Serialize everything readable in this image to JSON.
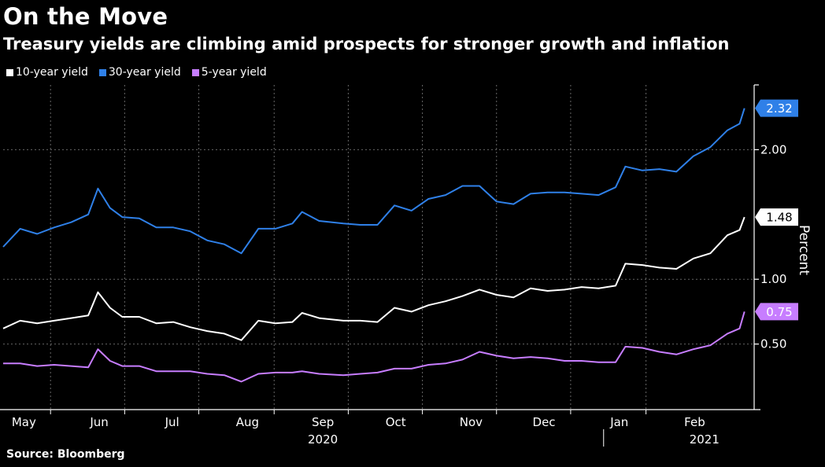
{
  "header": {
    "title": "On the Move",
    "subtitle": "Treasury yields are climbing amid prospects for stronger growth and inflation"
  },
  "source": "Source: Bloomberg",
  "colors": {
    "background": "#000000",
    "ten_year": "#ffffff",
    "thirty_year": "#2f80e8",
    "five_year": "#c77dff",
    "grid": "#666666"
  },
  "chart_data": {
    "type": "line",
    "title": "On the Move",
    "subtitle": "Treasury yields are climbing amid prospects for stronger growth and inflation",
    "ylabel": "Percent",
    "y_axis_side": "right",
    "grid": true,
    "legend_position": "top-left",
    "ylim": [
      0,
      2.5
    ],
    "yticks": [
      0.5,
      1.0,
      2.0
    ],
    "ytick_labels": [
      "0.50",
      "1.00",
      "2.00"
    ],
    "xlim": [
      "2020-04-27",
      "2021-03-02"
    ],
    "month_ticks": [
      "2020-05-01",
      "2020-06-01",
      "2020-07-01",
      "2020-08-01",
      "2020-09-01",
      "2020-10-01",
      "2020-11-01",
      "2020-12-01",
      "2021-01-01",
      "2021-02-01"
    ],
    "month_labels": [
      "May",
      "Jun",
      "Jul",
      "Aug",
      "Sep",
      "Oct",
      "Nov",
      "Dec",
      "Jan",
      "Feb"
    ],
    "year_labels": [
      {
        "label": "2020",
        "at": "2020-09-01"
      },
      {
        "label": "2021",
        "at": "2021-02-05"
      }
    ],
    "year_divider": "2021-01-01",
    "end_labels": [
      "2.32",
      "1.48",
      "0.75"
    ],
    "series": [
      {
        "name": "10-year yield",
        "color": "#ffffff",
        "last": "1.48",
        "points": [
          [
            "2020-04-27",
            0.62
          ],
          [
            "2020-05-04",
            0.68
          ],
          [
            "2020-05-11",
            0.66
          ],
          [
            "2020-05-18",
            0.68
          ],
          [
            "2020-05-25",
            0.7
          ],
          [
            "2020-06-01",
            0.72
          ],
          [
            "2020-06-05",
            0.9
          ],
          [
            "2020-06-10",
            0.78
          ],
          [
            "2020-06-15",
            0.71
          ],
          [
            "2020-06-22",
            0.71
          ],
          [
            "2020-06-29",
            0.66
          ],
          [
            "2020-07-06",
            0.67
          ],
          [
            "2020-07-13",
            0.63
          ],
          [
            "2020-07-20",
            0.6
          ],
          [
            "2020-07-27",
            0.58
          ],
          [
            "2020-08-03",
            0.53
          ],
          [
            "2020-08-10",
            0.68
          ],
          [
            "2020-08-17",
            0.66
          ],
          [
            "2020-08-24",
            0.67
          ],
          [
            "2020-08-28",
            0.74
          ],
          [
            "2020-09-04",
            0.7
          ],
          [
            "2020-09-14",
            0.68
          ],
          [
            "2020-09-21",
            0.68
          ],
          [
            "2020-09-28",
            0.67
          ],
          [
            "2020-10-05",
            0.78
          ],
          [
            "2020-10-12",
            0.75
          ],
          [
            "2020-10-19",
            0.8
          ],
          [
            "2020-10-26",
            0.83
          ],
          [
            "2020-11-02",
            0.87
          ],
          [
            "2020-11-09",
            0.92
          ],
          [
            "2020-11-16",
            0.88
          ],
          [
            "2020-11-23",
            0.86
          ],
          [
            "2020-11-30",
            0.93
          ],
          [
            "2020-12-07",
            0.91
          ],
          [
            "2020-12-14",
            0.92
          ],
          [
            "2020-12-21",
            0.94
          ],
          [
            "2020-12-28",
            0.93
          ],
          [
            "2021-01-04",
            0.95
          ],
          [
            "2021-01-08",
            1.12
          ],
          [
            "2021-01-15",
            1.11
          ],
          [
            "2021-01-22",
            1.09
          ],
          [
            "2021-01-29",
            1.08
          ],
          [
            "2021-02-05",
            1.16
          ],
          [
            "2021-02-12",
            1.2
          ],
          [
            "2021-02-19",
            1.34
          ],
          [
            "2021-02-24",
            1.38
          ],
          [
            "2021-02-26",
            1.48
          ]
        ]
      },
      {
        "name": "30-year yield",
        "color": "#2f80e8",
        "last": "2.32",
        "points": [
          [
            "2020-04-27",
            1.25
          ],
          [
            "2020-05-04",
            1.39
          ],
          [
            "2020-05-11",
            1.35
          ],
          [
            "2020-05-18",
            1.4
          ],
          [
            "2020-05-25",
            1.44
          ],
          [
            "2020-06-01",
            1.5
          ],
          [
            "2020-06-05",
            1.7
          ],
          [
            "2020-06-10",
            1.55
          ],
          [
            "2020-06-15",
            1.48
          ],
          [
            "2020-06-22",
            1.47
          ],
          [
            "2020-06-29",
            1.4
          ],
          [
            "2020-07-06",
            1.4
          ],
          [
            "2020-07-13",
            1.37
          ],
          [
            "2020-07-20",
            1.3
          ],
          [
            "2020-07-27",
            1.27
          ],
          [
            "2020-08-03",
            1.2
          ],
          [
            "2020-08-10",
            1.39
          ],
          [
            "2020-08-17",
            1.39
          ],
          [
            "2020-08-24",
            1.43
          ],
          [
            "2020-08-28",
            1.52
          ],
          [
            "2020-09-04",
            1.45
          ],
          [
            "2020-09-14",
            1.43
          ],
          [
            "2020-09-21",
            1.42
          ],
          [
            "2020-09-28",
            1.42
          ],
          [
            "2020-10-05",
            1.57
          ],
          [
            "2020-10-12",
            1.53
          ],
          [
            "2020-10-19",
            1.62
          ],
          [
            "2020-10-26",
            1.65
          ],
          [
            "2020-11-02",
            1.72
          ],
          [
            "2020-11-09",
            1.72
          ],
          [
            "2020-11-16",
            1.6
          ],
          [
            "2020-11-23",
            1.58
          ],
          [
            "2020-11-30",
            1.66
          ],
          [
            "2020-12-07",
            1.67
          ],
          [
            "2020-12-14",
            1.67
          ],
          [
            "2020-12-21",
            1.66
          ],
          [
            "2020-12-28",
            1.65
          ],
          [
            "2021-01-04",
            1.71
          ],
          [
            "2021-01-08",
            1.87
          ],
          [
            "2021-01-15",
            1.84
          ],
          [
            "2021-01-22",
            1.85
          ],
          [
            "2021-01-29",
            1.83
          ],
          [
            "2021-02-05",
            1.95
          ],
          [
            "2021-02-12",
            2.02
          ],
          [
            "2021-02-19",
            2.15
          ],
          [
            "2021-02-24",
            2.2
          ],
          [
            "2021-02-26",
            2.32
          ]
        ]
      },
      {
        "name": "5-year yield",
        "color": "#c77dff",
        "last": "0.75",
        "points": [
          [
            "2020-04-27",
            0.35
          ],
          [
            "2020-05-04",
            0.35
          ],
          [
            "2020-05-11",
            0.33
          ],
          [
            "2020-05-18",
            0.34
          ],
          [
            "2020-05-25",
            0.33
          ],
          [
            "2020-06-01",
            0.32
          ],
          [
            "2020-06-05",
            0.46
          ],
          [
            "2020-06-10",
            0.37
          ],
          [
            "2020-06-15",
            0.33
          ],
          [
            "2020-06-22",
            0.33
          ],
          [
            "2020-06-29",
            0.29
          ],
          [
            "2020-07-06",
            0.29
          ],
          [
            "2020-07-13",
            0.29
          ],
          [
            "2020-07-20",
            0.27
          ],
          [
            "2020-07-27",
            0.26
          ],
          [
            "2020-08-03",
            0.21
          ],
          [
            "2020-08-10",
            0.27
          ],
          [
            "2020-08-17",
            0.28
          ],
          [
            "2020-08-24",
            0.28
          ],
          [
            "2020-08-28",
            0.29
          ],
          [
            "2020-09-04",
            0.27
          ],
          [
            "2020-09-14",
            0.26
          ],
          [
            "2020-09-21",
            0.27
          ],
          [
            "2020-09-28",
            0.28
          ],
          [
            "2020-10-05",
            0.31
          ],
          [
            "2020-10-12",
            0.31
          ],
          [
            "2020-10-19",
            0.34
          ],
          [
            "2020-10-26",
            0.35
          ],
          [
            "2020-11-02",
            0.38
          ],
          [
            "2020-11-09",
            0.44
          ],
          [
            "2020-11-16",
            0.41
          ],
          [
            "2020-11-23",
            0.39
          ],
          [
            "2020-11-30",
            0.4
          ],
          [
            "2020-12-07",
            0.39
          ],
          [
            "2020-12-14",
            0.37
          ],
          [
            "2020-12-21",
            0.37
          ],
          [
            "2020-12-28",
            0.36
          ],
          [
            "2021-01-04",
            0.36
          ],
          [
            "2021-01-08",
            0.48
          ],
          [
            "2021-01-15",
            0.47
          ],
          [
            "2021-01-22",
            0.44
          ],
          [
            "2021-01-29",
            0.42
          ],
          [
            "2021-02-05",
            0.46
          ],
          [
            "2021-02-12",
            0.49
          ],
          [
            "2021-02-19",
            0.58
          ],
          [
            "2021-02-24",
            0.62
          ],
          [
            "2021-02-26",
            0.75
          ]
        ]
      }
    ]
  }
}
